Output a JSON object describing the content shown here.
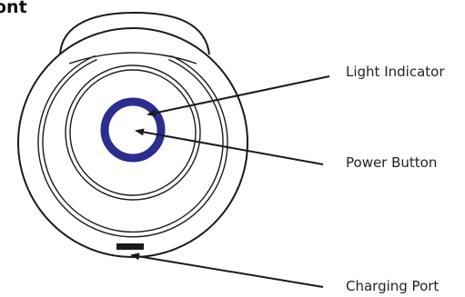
{
  "heading": "ont",
  "colors": {
    "ring": "#2b2d8f",
    "stroke": "#1a1a1a"
  },
  "callouts": {
    "light_indicator": "Light Indicator",
    "power_button": "Power Button",
    "charging_port": "Charging Port"
  }
}
